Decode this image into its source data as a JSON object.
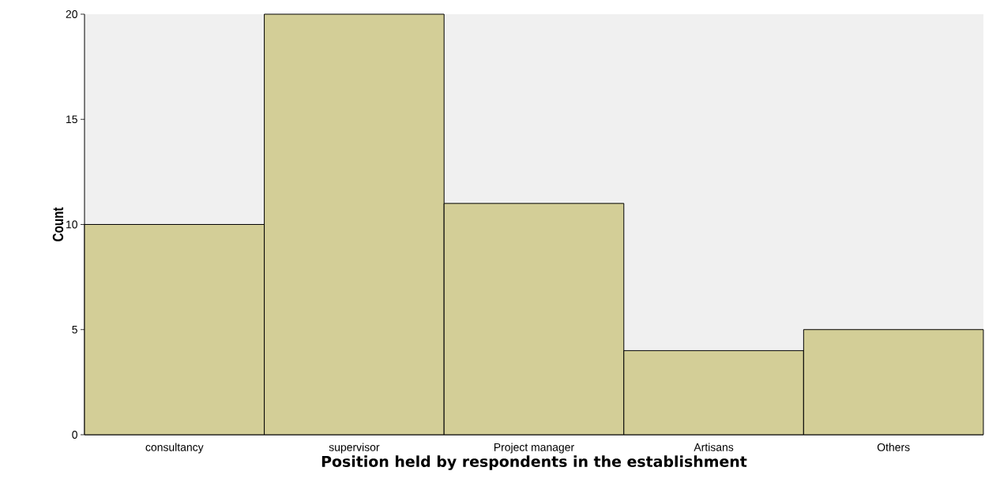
{
  "chart_data": {
    "type": "bar",
    "xlabel": "Position held by respondents in the establishment",
    "ylabel": "Count",
    "categories": [
      "consultancy",
      "supervisor",
      "Project manager",
      "Artisans",
      "Others"
    ],
    "values": [
      10,
      20,
      11,
      4,
      5
    ],
    "color": "#d3ce97",
    "ylim": [
      0,
      20
    ],
    "yticks": [
      0,
      5,
      10,
      15,
      20
    ]
  }
}
